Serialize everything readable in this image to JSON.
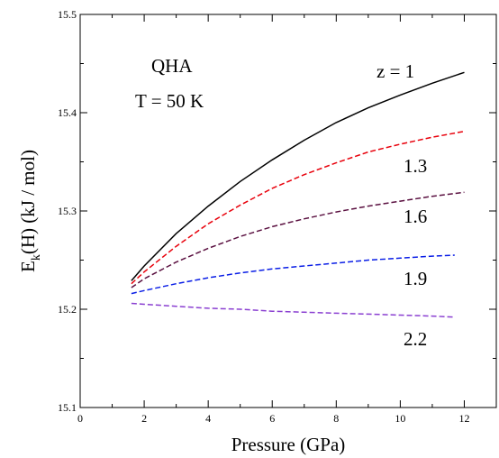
{
  "chart_data": {
    "type": "line",
    "xlabel": "Pressure  (GPa)",
    "ylabel_main": "E",
    "ylabel_sub": "k",
    "ylabel_rest": "(H)   (kJ / mol)",
    "xlim": [
      0,
      13
    ],
    "ylim": [
      15.1,
      15.5
    ],
    "xticks": [
      0,
      2,
      4,
      6,
      8,
      10,
      12
    ],
    "yticks": [
      15.1,
      15.2,
      15.3,
      15.4,
      15.5
    ],
    "xtick_labels": [
      "0",
      "2",
      "4",
      "6",
      "8",
      "10",
      "12"
    ],
    "ytick_labels": [
      "15.1",
      "15.2",
      "15.3",
      "15.4",
      "15.5"
    ],
    "grid": false,
    "annotations": {
      "method": "QHA",
      "temperature": "T = 50 K"
    },
    "series": [
      {
        "name": "z = 1",
        "color": "#000000",
        "dash": "solid",
        "x": [
          1.6,
          2,
          3,
          4,
          5,
          6,
          7,
          8,
          9,
          10,
          11,
          12
        ],
        "y": [
          15.229,
          15.244,
          15.277,
          15.305,
          15.33,
          15.352,
          15.372,
          15.39,
          15.405,
          15.418,
          15.43,
          15.441
        ]
      },
      {
        "name": "1.3",
        "color": "#e8000b",
        "dash": "dashed",
        "x": [
          1.6,
          2,
          3,
          4,
          5,
          6,
          7,
          8,
          9,
          10,
          11,
          12
        ],
        "y": [
          15.226,
          15.238,
          15.264,
          15.287,
          15.306,
          15.323,
          15.337,
          15.349,
          15.36,
          15.368,
          15.375,
          15.381
        ]
      },
      {
        "name": "1.6",
        "color": "#5a1040",
        "dash": "dashed",
        "x": [
          1.6,
          2,
          3,
          4,
          5,
          6,
          7,
          8,
          9,
          10,
          11,
          12
        ],
        "y": [
          15.222,
          15.231,
          15.248,
          15.262,
          15.274,
          15.284,
          15.292,
          15.299,
          15.305,
          15.31,
          15.315,
          15.319
        ]
      },
      {
        "name": "1.9",
        "color": "#0a1ee6",
        "dash": "dashed",
        "x": [
          1.6,
          2,
          3,
          4,
          5,
          6,
          7,
          8,
          9,
          10,
          11,
          11.7
        ],
        "y": [
          15.216,
          15.219,
          15.226,
          15.232,
          15.237,
          15.241,
          15.244,
          15.247,
          15.25,
          15.252,
          15.254,
          15.255
        ]
      },
      {
        "name": "2.2",
        "color": "#8a3fd1",
        "dash": "dashed",
        "x": [
          1.6,
          2,
          3,
          4,
          5,
          6,
          7,
          8,
          9,
          10,
          11,
          11.7
        ],
        "y": [
          15.206,
          15.205,
          15.203,
          15.201,
          15.2,
          15.198,
          15.197,
          15.196,
          15.195,
          15.194,
          15.193,
          15.192
        ]
      }
    ]
  }
}
